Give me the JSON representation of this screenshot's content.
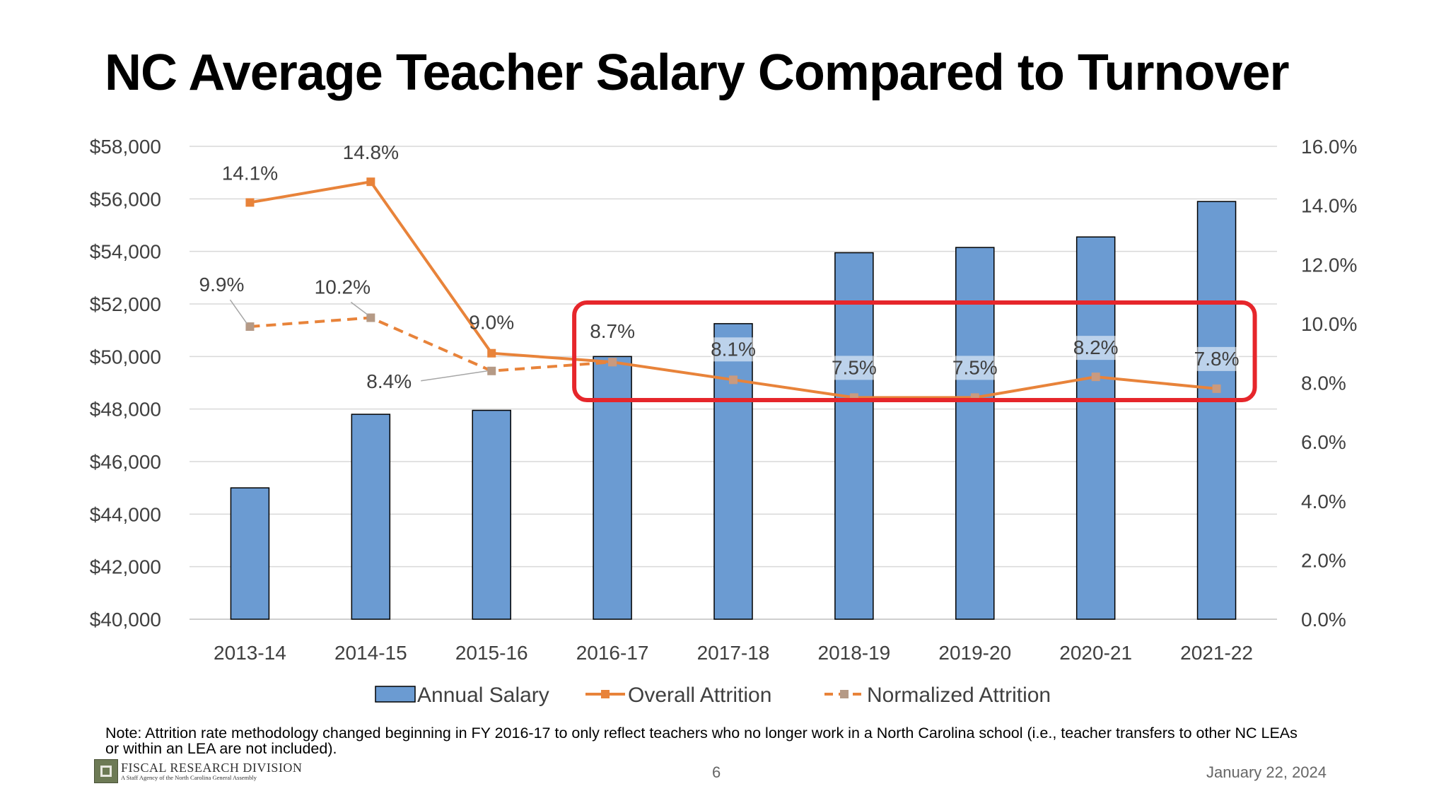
{
  "slide": {
    "title": "NC Average Teacher Salary Compared to Turnover",
    "note": "Note: Attrition rate methodology changed beginning in FY 2016-17 to only reflect teachers who no longer work in a North Carolina school (i.e., teacher transfers to other NC LEAs or within an LEA are not included).",
    "logo_name": "FISCAL RESEARCH DIVISION",
    "logo_sub": "A Staff Agency of the North Carolina General Assembly",
    "page_number": "6",
    "date": "January 22, 2024"
  },
  "chart_data": {
    "type": "bar",
    "title": "NC Average Teacher Salary Compared to Turnover",
    "categories": [
      "2013-14",
      "2014-15",
      "2015-16",
      "2016-17",
      "2017-18",
      "2018-19",
      "2019-20",
      "2020-21",
      "2021-22"
    ],
    "y_left_ticks": [
      "$40,000",
      "$42,000",
      "$44,000",
      "$46,000",
      "$48,000",
      "$50,000",
      "$52,000",
      "$54,000",
      "$56,000",
      "$58,000"
    ],
    "y_right_ticks": [
      "0.0%",
      "2.0%",
      "4.0%",
      "6.0%",
      "8.0%",
      "10.0%",
      "12.0%",
      "14.0%",
      "16.0%"
    ],
    "y_left_range": [
      40000,
      58000
    ],
    "y_right_range": [
      0,
      16
    ],
    "grid": true,
    "legend_position": "bottom",
    "series": [
      {
        "name": "Annual Salary",
        "kind": "bar",
        "axis": "left",
        "color": "#6b9bd2",
        "values": [
          45000,
          47800,
          47950,
          50000,
          51250,
          53950,
          54150,
          54550,
          55900
        ]
      },
      {
        "name": "Overall Attrition",
        "kind": "line",
        "axis": "right",
        "style": "solid",
        "color": "#e8833a",
        "values": [
          14.1,
          14.8,
          9.0,
          8.7,
          8.1,
          7.5,
          7.5,
          8.2,
          7.8
        ],
        "labels": [
          "14.1%",
          "14.8%",
          "9.0%",
          "8.7%",
          "8.1%",
          "7.5%",
          "7.5%",
          "8.2%",
          "7.8%"
        ]
      },
      {
        "name": "Normalized Attrition",
        "kind": "line",
        "axis": "right",
        "style": "dashed",
        "color": "#e8833a",
        "values": [
          9.9,
          10.2,
          8.4,
          8.7,
          null,
          null,
          null,
          null,
          null
        ],
        "labels": [
          "9.9%",
          "10.2%",
          "8.4%"
        ]
      }
    ],
    "annotation": {
      "type": "highlight-box",
      "color": "#e6262b",
      "from_category": "2016-17",
      "to_category": "2021-22"
    }
  }
}
